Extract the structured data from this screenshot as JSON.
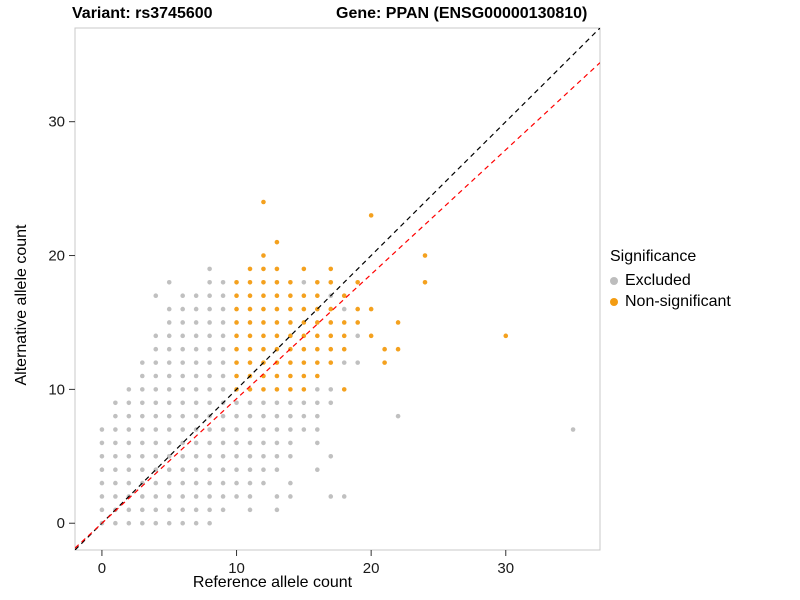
{
  "header": {
    "variant_title": "Variant: rs3745600",
    "gene_title": "Gene: PPAN (ENSG00000130810)"
  },
  "chart_data": {
    "type": "scatter",
    "xlabel": "Reference allele count",
    "ylabel": "Alternative allele count",
    "xlim": [
      -2,
      37
    ],
    "ylim": [
      -2,
      37
    ],
    "xticks": [
      0,
      10,
      20,
      30
    ],
    "yticks": [
      0,
      10,
      20,
      30
    ],
    "grid": false,
    "panel_border": "#c8c8c8",
    "tick_color": "#333333",
    "tick_label_color": "#1a1a1a",
    "legend": {
      "title": "Significance",
      "position": "right",
      "items": [
        {
          "label": "Excluded",
          "color": "#bdbdbd"
        },
        {
          "label": "Non-significant",
          "color": "#f39c12"
        }
      ]
    },
    "lines": [
      {
        "name": "identity",
        "style": "dashed",
        "color": "#000000",
        "slope": 1.0,
        "intercept": 0
      },
      {
        "name": "fit",
        "style": "dashed",
        "color": "#ff0000",
        "slope": 0.93,
        "intercept": 0
      }
    ],
    "series": [
      {
        "name": "Excluded",
        "color": "#bdbdbd",
        "points": [
          [
            0,
            0
          ],
          [
            1,
            0
          ],
          [
            2,
            0
          ],
          [
            3,
            0
          ],
          [
            4,
            0
          ],
          [
            5,
            0
          ],
          [
            6,
            0
          ],
          [
            7,
            0
          ],
          [
            8,
            0
          ],
          [
            0,
            1
          ],
          [
            1,
            1
          ],
          [
            2,
            1
          ],
          [
            3,
            1
          ],
          [
            4,
            1
          ],
          [
            5,
            1
          ],
          [
            6,
            1
          ],
          [
            7,
            1
          ],
          [
            8,
            1
          ],
          [
            9,
            1
          ],
          [
            11,
            1
          ],
          [
            13,
            1
          ],
          [
            0,
            2
          ],
          [
            1,
            2
          ],
          [
            2,
            2
          ],
          [
            3,
            2
          ],
          [
            4,
            2
          ],
          [
            5,
            2
          ],
          [
            6,
            2
          ],
          [
            7,
            2
          ],
          [
            8,
            2
          ],
          [
            9,
            2
          ],
          [
            10,
            2
          ],
          [
            11,
            2
          ],
          [
            13,
            2
          ],
          [
            14,
            2
          ],
          [
            17,
            2
          ],
          [
            18,
            2
          ],
          [
            0,
            3
          ],
          [
            1,
            3
          ],
          [
            2,
            3
          ],
          [
            3,
            3
          ],
          [
            4,
            3
          ],
          [
            5,
            3
          ],
          [
            6,
            3
          ],
          [
            7,
            3
          ],
          [
            8,
            3
          ],
          [
            9,
            3
          ],
          [
            10,
            3
          ],
          [
            11,
            3
          ],
          [
            12,
            3
          ],
          [
            14,
            3
          ],
          [
            0,
            4
          ],
          [
            1,
            4
          ],
          [
            2,
            4
          ],
          [
            3,
            4
          ],
          [
            4,
            4
          ],
          [
            5,
            4
          ],
          [
            6,
            4
          ],
          [
            7,
            4
          ],
          [
            8,
            4
          ],
          [
            9,
            4
          ],
          [
            10,
            4
          ],
          [
            11,
            4
          ],
          [
            12,
            4
          ],
          [
            13,
            4
          ],
          [
            16,
            4
          ],
          [
            0,
            5
          ],
          [
            1,
            5
          ],
          [
            2,
            5
          ],
          [
            3,
            5
          ],
          [
            4,
            5
          ],
          [
            5,
            5
          ],
          [
            6,
            5
          ],
          [
            7,
            5
          ],
          [
            8,
            5
          ],
          [
            9,
            5
          ],
          [
            10,
            5
          ],
          [
            11,
            5
          ],
          [
            12,
            5
          ],
          [
            13,
            5
          ],
          [
            14,
            5
          ],
          [
            17,
            5
          ],
          [
            0,
            6
          ],
          [
            1,
            6
          ],
          [
            2,
            6
          ],
          [
            3,
            6
          ],
          [
            4,
            6
          ],
          [
            5,
            6
          ],
          [
            6,
            6
          ],
          [
            7,
            6
          ],
          [
            8,
            6
          ],
          [
            9,
            6
          ],
          [
            10,
            6
          ],
          [
            11,
            6
          ],
          [
            12,
            6
          ],
          [
            13,
            6
          ],
          [
            14,
            6
          ],
          [
            16,
            6
          ],
          [
            0,
            7
          ],
          [
            1,
            7
          ],
          [
            2,
            7
          ],
          [
            3,
            7
          ],
          [
            4,
            7
          ],
          [
            5,
            7
          ],
          [
            6,
            7
          ],
          [
            7,
            7
          ],
          [
            8,
            7
          ],
          [
            9,
            7
          ],
          [
            10,
            7
          ],
          [
            11,
            7
          ],
          [
            12,
            7
          ],
          [
            13,
            7
          ],
          [
            14,
            7
          ],
          [
            15,
            7
          ],
          [
            16,
            7
          ],
          [
            35,
            7
          ],
          [
            1,
            8
          ],
          [
            2,
            8
          ],
          [
            3,
            8
          ],
          [
            4,
            8
          ],
          [
            5,
            8
          ],
          [
            6,
            8
          ],
          [
            7,
            8
          ],
          [
            8,
            8
          ],
          [
            9,
            8
          ],
          [
            10,
            8
          ],
          [
            11,
            8
          ],
          [
            12,
            8
          ],
          [
            13,
            8
          ],
          [
            14,
            8
          ],
          [
            15,
            8
          ],
          [
            16,
            8
          ],
          [
            22,
            8
          ],
          [
            1,
            9
          ],
          [
            2,
            9
          ],
          [
            3,
            9
          ],
          [
            4,
            9
          ],
          [
            5,
            9
          ],
          [
            6,
            9
          ],
          [
            7,
            9
          ],
          [
            8,
            9
          ],
          [
            9,
            9
          ],
          [
            10,
            9
          ],
          [
            11,
            9
          ],
          [
            12,
            9
          ],
          [
            13,
            9
          ],
          [
            14,
            9
          ],
          [
            15,
            9
          ],
          [
            16,
            9
          ],
          [
            17,
            9
          ],
          [
            2,
            10
          ],
          [
            3,
            10
          ],
          [
            4,
            10
          ],
          [
            5,
            10
          ],
          [
            6,
            10
          ],
          [
            7,
            10
          ],
          [
            8,
            10
          ],
          [
            9,
            10
          ],
          [
            16,
            10
          ],
          [
            17,
            10
          ],
          [
            3,
            11
          ],
          [
            4,
            11
          ],
          [
            5,
            11
          ],
          [
            6,
            11
          ],
          [
            7,
            11
          ],
          [
            8,
            11
          ],
          [
            9,
            11
          ],
          [
            3,
            12
          ],
          [
            4,
            12
          ],
          [
            5,
            12
          ],
          [
            6,
            12
          ],
          [
            7,
            12
          ],
          [
            8,
            12
          ],
          [
            9,
            12
          ],
          [
            18,
            12
          ],
          [
            19,
            12
          ],
          [
            4,
            13
          ],
          [
            5,
            13
          ],
          [
            6,
            13
          ],
          [
            7,
            13
          ],
          [
            8,
            13
          ],
          [
            9,
            13
          ],
          [
            4,
            14
          ],
          [
            5,
            14
          ],
          [
            6,
            14
          ],
          [
            7,
            14
          ],
          [
            8,
            14
          ],
          [
            9,
            14
          ],
          [
            19,
            14
          ],
          [
            5,
            15
          ],
          [
            6,
            15
          ],
          [
            7,
            15
          ],
          [
            8,
            15
          ],
          [
            9,
            15
          ],
          [
            5,
            16
          ],
          [
            6,
            16
          ],
          [
            7,
            16
          ],
          [
            8,
            16
          ],
          [
            9,
            16
          ],
          [
            18,
            16
          ],
          [
            4,
            17
          ],
          [
            6,
            17
          ],
          [
            7,
            17
          ],
          [
            8,
            17
          ],
          [
            9,
            17
          ],
          [
            17,
            17
          ],
          [
            5,
            18
          ],
          [
            8,
            18
          ],
          [
            9,
            18
          ],
          [
            15,
            18
          ],
          [
            8,
            19
          ]
        ]
      },
      {
        "name": "Non-significant",
        "color": "#f39c12",
        "points": [
          [
            10,
            10
          ],
          [
            11,
            10
          ],
          [
            12,
            10
          ],
          [
            13,
            10
          ],
          [
            14,
            10
          ],
          [
            15,
            10
          ],
          [
            18,
            10
          ],
          [
            10,
            11
          ],
          [
            11,
            11
          ],
          [
            12,
            11
          ],
          [
            13,
            11
          ],
          [
            14,
            11
          ],
          [
            15,
            11
          ],
          [
            16,
            11
          ],
          [
            10,
            12
          ],
          [
            11,
            12
          ],
          [
            12,
            12
          ],
          [
            13,
            12
          ],
          [
            14,
            12
          ],
          [
            15,
            12
          ],
          [
            16,
            12
          ],
          [
            17,
            12
          ],
          [
            21,
            12
          ],
          [
            10,
            13
          ],
          [
            11,
            13
          ],
          [
            12,
            13
          ],
          [
            13,
            13
          ],
          [
            14,
            13
          ],
          [
            15,
            13
          ],
          [
            16,
            13
          ],
          [
            17,
            13
          ],
          [
            18,
            13
          ],
          [
            21,
            13
          ],
          [
            22,
            13
          ],
          [
            10,
            14
          ],
          [
            11,
            14
          ],
          [
            12,
            14
          ],
          [
            13,
            14
          ],
          [
            14,
            14
          ],
          [
            15,
            14
          ],
          [
            16,
            14
          ],
          [
            17,
            14
          ],
          [
            18,
            14
          ],
          [
            20,
            14
          ],
          [
            30,
            14
          ],
          [
            10,
            15
          ],
          [
            11,
            15
          ],
          [
            12,
            15
          ],
          [
            13,
            15
          ],
          [
            14,
            15
          ],
          [
            15,
            15
          ],
          [
            16,
            15
          ],
          [
            17,
            15
          ],
          [
            18,
            15
          ],
          [
            19,
            15
          ],
          [
            22,
            15
          ],
          [
            10,
            16
          ],
          [
            11,
            16
          ],
          [
            12,
            16
          ],
          [
            13,
            16
          ],
          [
            14,
            16
          ],
          [
            15,
            16
          ],
          [
            16,
            16
          ],
          [
            17,
            16
          ],
          [
            19,
            16
          ],
          [
            20,
            16
          ],
          [
            10,
            17
          ],
          [
            11,
            17
          ],
          [
            12,
            17
          ],
          [
            13,
            17
          ],
          [
            14,
            17
          ],
          [
            15,
            17
          ],
          [
            16,
            17
          ],
          [
            18,
            17
          ],
          [
            10,
            18
          ],
          [
            11,
            18
          ],
          [
            12,
            18
          ],
          [
            13,
            18
          ],
          [
            14,
            18
          ],
          [
            16,
            18
          ],
          [
            17,
            18
          ],
          [
            19,
            18
          ],
          [
            24,
            18
          ],
          [
            11,
            19
          ],
          [
            12,
            19
          ],
          [
            13,
            19
          ],
          [
            15,
            19
          ],
          [
            17,
            19
          ],
          [
            12,
            20
          ],
          [
            24,
            20
          ],
          [
            13,
            21
          ],
          [
            20,
            23
          ],
          [
            12,
            24
          ]
        ]
      }
    ]
  }
}
